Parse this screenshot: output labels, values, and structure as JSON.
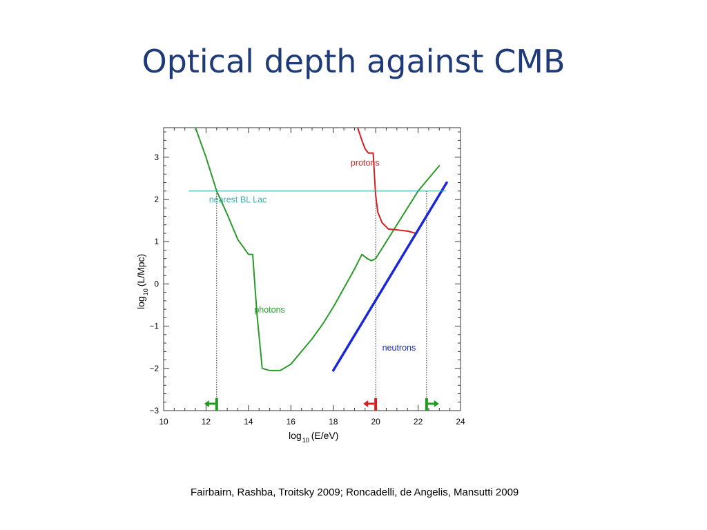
{
  "slide": {
    "title": "Optical depth against CMB",
    "citation": "Fairbairn, Rashba, Troitsky 2009; Roncadelli, de Angelis, Mansutti 2009"
  },
  "chart_data": {
    "type": "line",
    "xlabel_main": "log",
    "xlabel_sub": "10",
    "xlabel_rest": "(E/eV)",
    "ylabel_main": "log",
    "ylabel_sub": "10",
    "ylabel_rest": "(L/Mpc)",
    "xlim": [
      10,
      24
    ],
    "ylim": [
      -3,
      3.7
    ],
    "x_ticks": [
      10,
      12,
      14,
      16,
      18,
      20,
      22,
      24
    ],
    "x_tick_labels": [
      "10",
      "12",
      "14",
      "16",
      "18",
      "20",
      "22",
      "24"
    ],
    "y_ticks": [
      -3,
      -2,
      -1,
      0,
      1,
      2,
      3
    ],
    "y_tick_labels": [
      "−3",
      "−2",
      "−1",
      "0",
      "1",
      "2",
      "3"
    ],
    "grid": false,
    "series": [
      {
        "name": "photons",
        "color": "#2a9a2a",
        "x": [
          11.5,
          12.0,
          12.5,
          13.0,
          13.5,
          14.0,
          14.2,
          14.4,
          14.65,
          15.0,
          15.5,
          16.0,
          16.5,
          17.0,
          17.5,
          18.0,
          18.5,
          19.0,
          19.35,
          19.6,
          19.8,
          20.0,
          20.5,
          21.0,
          21.5,
          22.0,
          22.5,
          23.0
        ],
        "y": [
          3.7,
          3.0,
          2.2,
          1.65,
          1.05,
          0.7,
          0.7,
          -0.7,
          -2.0,
          -2.05,
          -2.05,
          -1.9,
          -1.6,
          -1.3,
          -0.95,
          -0.55,
          -0.1,
          0.35,
          0.7,
          0.6,
          0.55,
          0.6,
          1.0,
          1.4,
          1.8,
          2.2,
          2.5,
          2.8
        ]
      },
      {
        "name": "protons",
        "color": "#d42020",
        "x": [
          19.15,
          19.35,
          19.5,
          19.65,
          19.8,
          19.88,
          19.95,
          20.0,
          20.1,
          20.3,
          20.6,
          21.0,
          21.5,
          21.9
        ],
        "y": [
          3.7,
          3.4,
          3.2,
          3.1,
          3.1,
          3.1,
          2.5,
          2.1,
          1.7,
          1.45,
          1.3,
          1.28,
          1.25,
          1.2
        ]
      },
      {
        "name": "neutrons",
        "color": "#1a26d9",
        "x": [
          18.0,
          23.35
        ],
        "y": [
          -2.05,
          2.4
        ]
      },
      {
        "name": "nearest BL Lac",
        "color": "#36b3b3",
        "x": [
          11.2,
          23.3
        ],
        "y": [
          2.2,
          2.2
        ]
      }
    ],
    "vertical_markers": [
      {
        "x": 12.5,
        "y_top": 2.2,
        "arrow_direction": "left",
        "color": "#1f9a1f"
      },
      {
        "x": 20.0,
        "y_top": 2.2,
        "arrow_direction": "left",
        "color": "#d42020"
      },
      {
        "x": 22.4,
        "y_top": 2.2,
        "arrow_direction": "right",
        "color": "#1f9a1f"
      }
    ],
    "labels": [
      {
        "text": "photons",
        "x": 15.0,
        "y": -0.68,
        "color": "#2a9a2a"
      },
      {
        "text": "protons",
        "x": 19.5,
        "y": 2.8,
        "color": "#d42020"
      },
      {
        "text": "nearest BL Lac",
        "x": 13.5,
        "y": 1.93,
        "color": "#36b3b3"
      },
      {
        "text": "neutrons",
        "x": 21.1,
        "y": -1.58,
        "color": "#1a26d9"
      }
    ]
  }
}
